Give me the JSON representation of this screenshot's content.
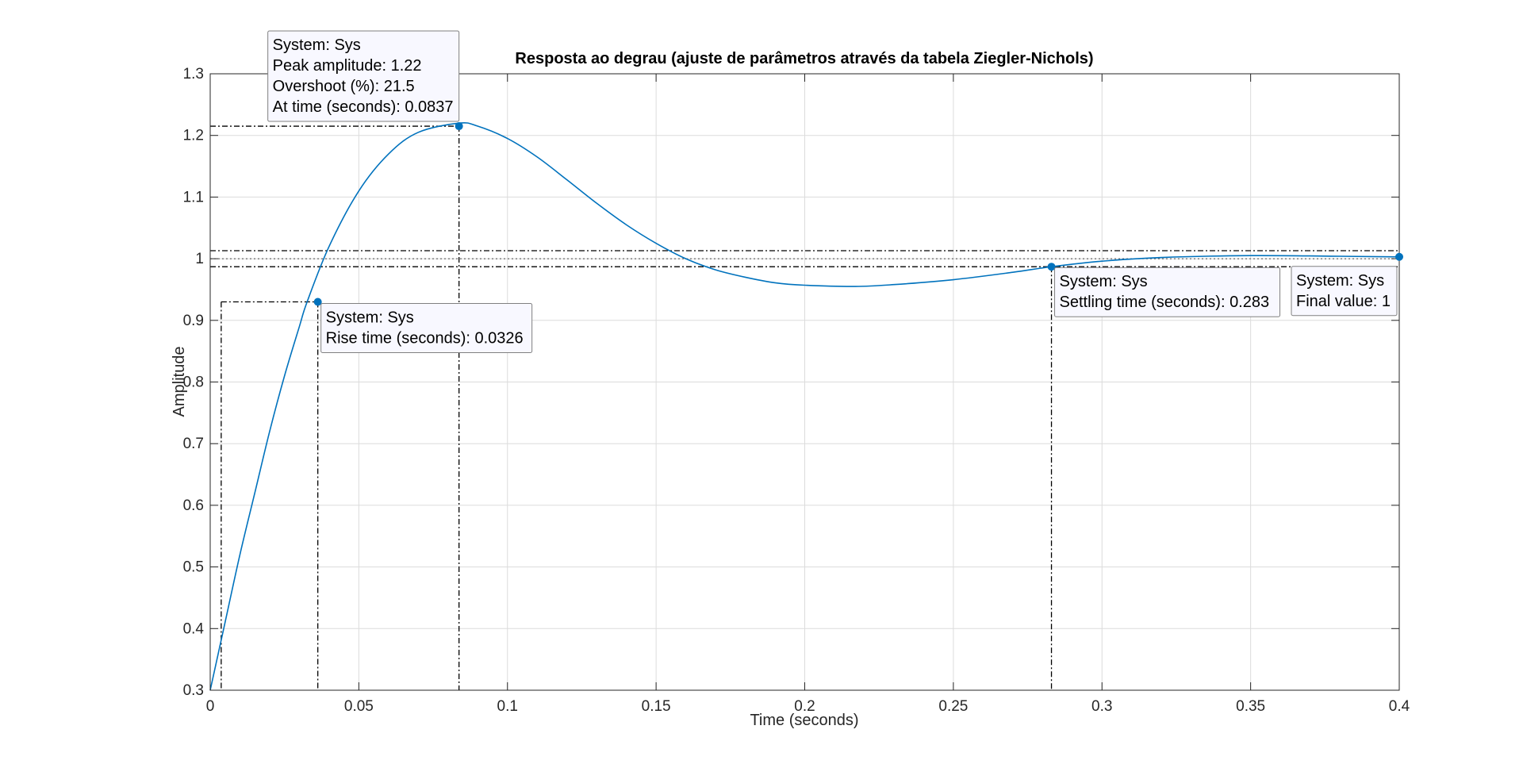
{
  "chart_data": {
    "type": "line",
    "title": "Resposta ao degrau (ajuste de parâmetros através da tabela Ziegler-Nichols)",
    "xlabel": "Time (seconds)",
    "ylabel": "Amplitude",
    "xlim": [
      0,
      0.4
    ],
    "ylim": [
      0.3,
      1.3
    ],
    "grid": true,
    "x_ticks": [
      0,
      0.05,
      0.1,
      0.15,
      0.2,
      0.25,
      0.3,
      0.35,
      0.4
    ],
    "x_tick_labels": [
      "0",
      "0.05",
      "0.1",
      "0.15",
      "0.2",
      "0.25",
      "0.3",
      "0.35",
      "0.4"
    ],
    "y_ticks": [
      0.3,
      0.4,
      0.5,
      0.6,
      0.7,
      0.8,
      0.9,
      1,
      1.1,
      1.2,
      1.3
    ],
    "y_tick_labels": [
      "0.3",
      "0.4",
      "0.5",
      "0.6",
      "0.7",
      "0.8",
      "0.9",
      "1",
      "1.1",
      "1.2",
      "1.3"
    ],
    "series": [
      {
        "name": "Sys",
        "color": "#0072BD",
        "x": [
          0,
          0.005,
          0.01,
          0.015,
          0.02,
          0.025,
          0.03,
          0.0326,
          0.04,
          0.05,
          0.06,
          0.07,
          0.0837,
          0.09,
          0.1,
          0.11,
          0.12,
          0.13,
          0.14,
          0.15,
          0.16,
          0.17,
          0.18,
          0.19,
          0.2,
          0.217,
          0.23,
          0.25,
          0.27,
          0.283,
          0.3,
          0.32,
          0.35,
          0.38,
          0.4
        ],
        "y": [
          0.3,
          0.41,
          0.52,
          0.62,
          0.72,
          0.81,
          0.89,
          0.93,
          1.02,
          1.11,
          1.17,
          1.205,
          1.22,
          1.215,
          1.195,
          1.165,
          1.128,
          1.09,
          1.055,
          1.025,
          1.0,
          0.982,
          0.97,
          0.961,
          0.957,
          0.955,
          0.958,
          0.966,
          0.978,
          0.987,
          0.996,
          1.002,
          1.005,
          1.004,
          1.003
        ]
      }
    ],
    "reference_lines": {
      "final_value": 1.0,
      "settling_band_upper": 1.013,
      "settling_band_lower": 0.987,
      "rise_start_time": 0.0037,
      "rise_end_amplitude": 0.93
    },
    "datatips": [
      {
        "id": "peak",
        "x": 0.0837,
        "y": 1.215,
        "lines": [
          "System: Sys",
          "Peak amplitude: 1.22",
          "Overshoot (%): 21.5",
          "At time (seconds): 0.0837"
        ]
      },
      {
        "id": "rise",
        "x": 0.0362,
        "y": 0.93,
        "lines": [
          "System: Sys",
          "Rise time (seconds): 0.0326"
        ]
      },
      {
        "id": "settling",
        "x": 0.283,
        "y": 0.987,
        "lines": [
          "System: Sys",
          "Settling time (seconds): 0.283"
        ]
      },
      {
        "id": "final",
        "x": 0.4,
        "y": 1.003,
        "lines": [
          "System: Sys",
          "Final value: 1"
        ]
      }
    ]
  }
}
